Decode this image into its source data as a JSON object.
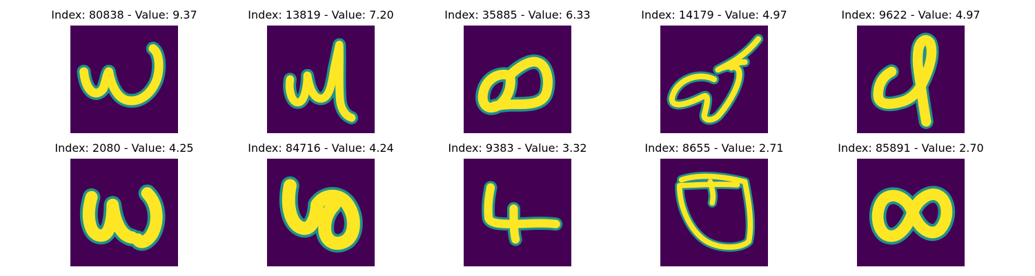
{
  "colors": {
    "background": "#440154",
    "mid": "#21918c",
    "stroke": "#fde725",
    "edge": "#5ec962"
  },
  "panels": [
    {
      "title": "Index: 80838 - Value: 9.37",
      "glyph": "w-shape"
    },
    {
      "title": "Index: 13819 - Value: 7.20",
      "glyph": "w-tall-right"
    },
    {
      "title": "Index: 35885 - Value: 6.33",
      "glyph": "loop-a"
    },
    {
      "title": "Index: 14179 - Value: 4.97",
      "glyph": "leaf-loop"
    },
    {
      "title": "Index: 9622 - Value: 4.97",
      "glyph": "hook-stem"
    },
    {
      "title": "Index: 2080 - Value: 4.25",
      "glyph": "w-blob"
    },
    {
      "title": "Index: 84716 - Value: 4.24",
      "glyph": "thick-loop"
    },
    {
      "title": "Index: 9383 - Value: 3.32",
      "glyph": "four-shape"
    },
    {
      "title": "Index: 8655 - Value: 2.71",
      "glyph": "cup-shape"
    },
    {
      "title": "Index: 85891 - Value: 2.70",
      "glyph": "infinity-shape"
    }
  ]
}
